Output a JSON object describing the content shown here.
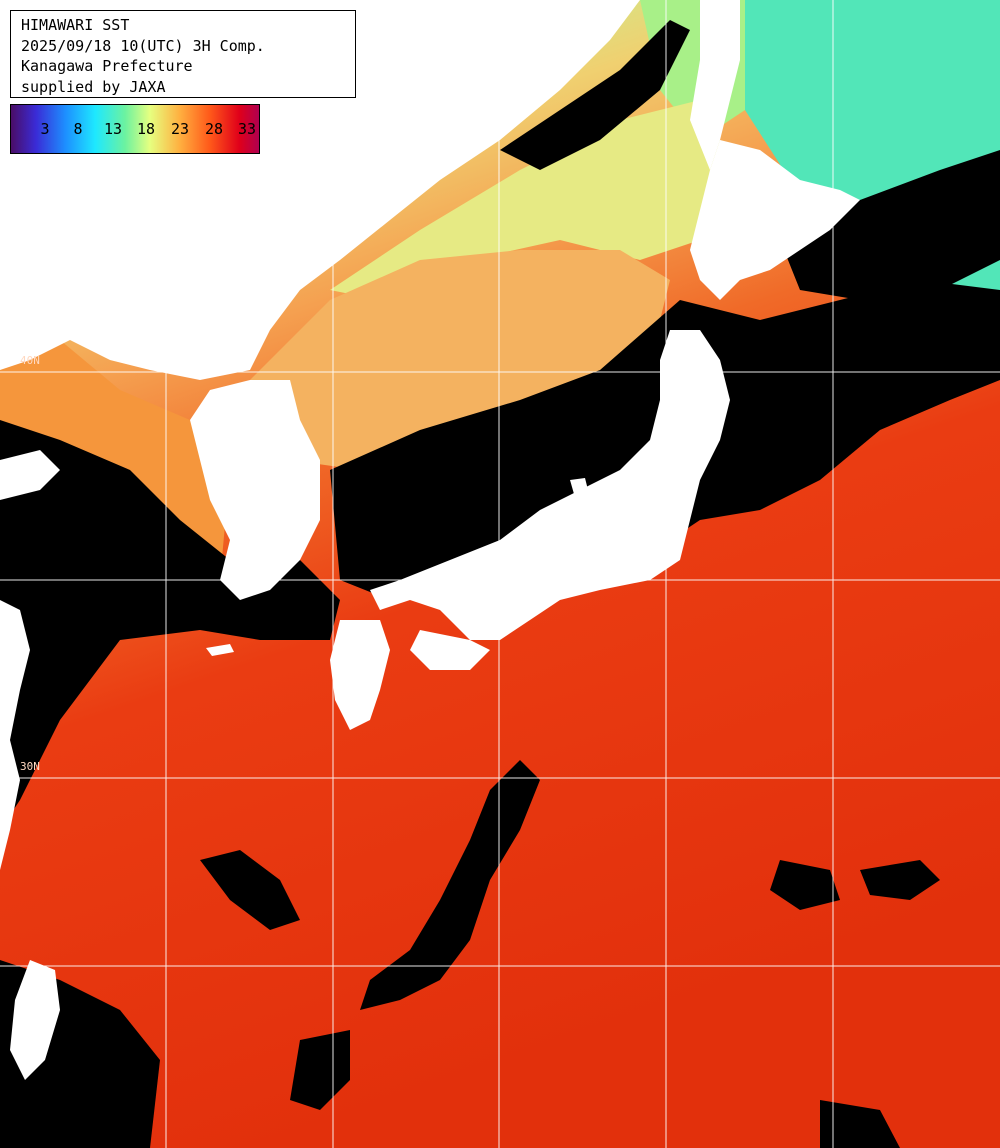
{
  "title": {
    "lines": [
      "HIMAWARI SST",
      "2025/09/18 10(UTC) 3H Comp.",
      "Kanagawa Prefecture",
      "supplied by JAXA"
    ]
  },
  "scale": {
    "labels": [
      "3",
      "8",
      "13",
      "18",
      "23",
      "28",
      "33"
    ]
  },
  "grid_labels": {
    "lat_upper": "40N",
    "lat_lower": "30N"
  },
  "colors": {
    "land": "#ffffff",
    "cloud": "#000000",
    "warm_sea": "#ee3a10",
    "hot_sea": "#e02a0a",
    "orange_sea": "#f59a40",
    "yellow_sea": "#e8e880",
    "cool_sea": "#80e890",
    "cold_sea": "#40e0c8",
    "grid": "#ffffff"
  }
}
